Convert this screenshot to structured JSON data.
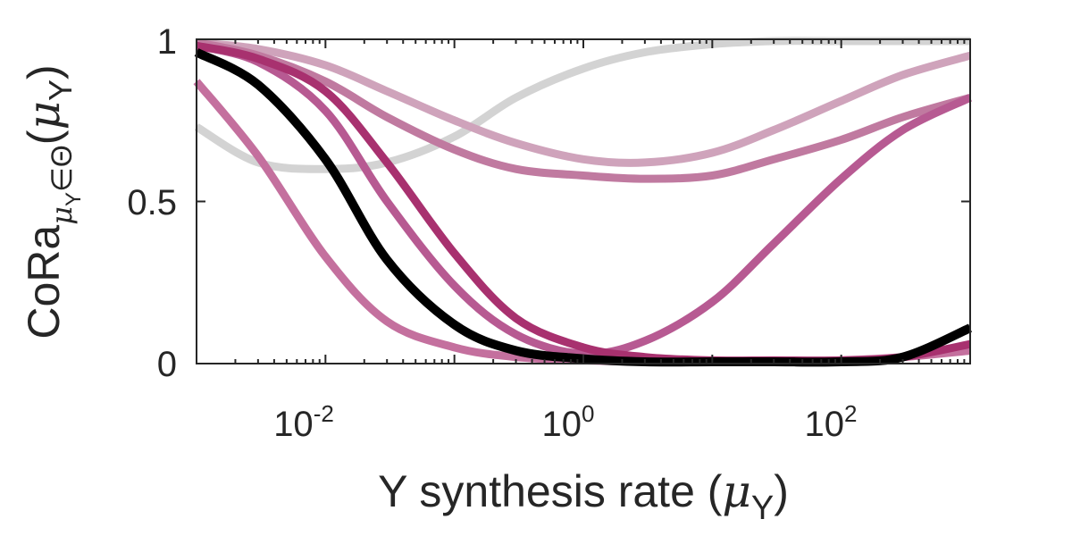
{
  "chart_data": {
    "type": "line",
    "x_scale": "log",
    "xlim": [
      0.001,
      1000
    ],
    "ylim": [
      0,
      1
    ],
    "x_ticks": [
      {
        "value": 0.01,
        "base": "10",
        "exp": "-2"
      },
      {
        "value": 1,
        "base": "10",
        "exp": "0"
      },
      {
        "value": 100,
        "base": "10",
        "exp": "2"
      }
    ],
    "y_ticks": [
      {
        "value": 0,
        "label": "0"
      },
      {
        "value": 0.5,
        "label": "0.5"
      },
      {
        "value": 1,
        "label": "1"
      }
    ],
    "xlabel": {
      "text": "Y synthesis rate (",
      "symbol": "μ",
      "sub": "Y",
      "close": ")"
    },
    "ylabel": {
      "text": "CoRa",
      "sub_symbol": "μ",
      "sub_sub": "Y",
      "sub_rest": "∈Θ",
      "open": "(",
      "symbol": "μ",
      "sym_sub": "Y",
      "close": ")"
    },
    "grid": false,
    "legend": "none",
    "series": [
      {
        "color": "#d3d3d3",
        "x": [
          0.001,
          0.003,
          0.01,
          0.03,
          0.1,
          0.3,
          1,
          3,
          10,
          30,
          100,
          300,
          1000
        ],
        "y": [
          0.73,
          0.62,
          0.6,
          0.62,
          0.7,
          0.82,
          0.91,
          0.96,
          0.985,
          0.995,
          1.0,
          1.0,
          1.0
        ]
      },
      {
        "color": "#cfa3bb",
        "x": [
          0.001,
          0.003,
          0.01,
          0.03,
          0.1,
          0.3,
          1,
          3,
          10,
          30,
          100,
          300,
          1000
        ],
        "y": [
          0.99,
          0.97,
          0.92,
          0.84,
          0.75,
          0.68,
          0.63,
          0.62,
          0.65,
          0.72,
          0.81,
          0.89,
          0.95
        ]
      },
      {
        "color": "#c07aa0",
        "x": [
          0.001,
          0.003,
          0.01,
          0.03,
          0.1,
          0.3,
          1,
          3,
          10,
          30,
          100,
          300,
          1000
        ],
        "y": [
          0.99,
          0.95,
          0.87,
          0.76,
          0.66,
          0.6,
          0.58,
          0.57,
          0.58,
          0.63,
          0.69,
          0.76,
          0.82
        ]
      },
      {
        "color": "#c4709e",
        "x": [
          0.001,
          0.003,
          0.01,
          0.03,
          0.1,
          0.3,
          1,
          3,
          10,
          30,
          100,
          300,
          1000
        ],
        "y": [
          0.87,
          0.64,
          0.33,
          0.13,
          0.05,
          0.02,
          0.01,
          0.005,
          0.005,
          0.005,
          0.01,
          0.02,
          0.04
        ]
      },
      {
        "color": "#b75a92",
        "x": [
          0.001,
          0.003,
          0.01,
          0.03,
          0.1,
          0.3,
          1,
          3,
          10,
          30,
          100,
          300,
          1000
        ],
        "y": [
          0.98,
          0.93,
          0.78,
          0.5,
          0.24,
          0.09,
          0.03,
          0.07,
          0.19,
          0.37,
          0.57,
          0.72,
          0.82
        ]
      },
      {
        "color": "#a8316f",
        "x": [
          0.001,
          0.003,
          0.01,
          0.03,
          0.1,
          0.3,
          1,
          3,
          10,
          30,
          100,
          300,
          1000
        ],
        "y": [
          0.98,
          0.94,
          0.84,
          0.62,
          0.34,
          0.14,
          0.05,
          0.02,
          0.01,
          0.01,
          0.01,
          0.02,
          0.06
        ]
      },
      {
        "color": "#000000",
        "x": [
          0.001,
          0.003,
          0.01,
          0.03,
          0.1,
          0.3,
          1,
          3,
          10,
          30,
          100,
          300,
          1000
        ],
        "y": [
          0.96,
          0.86,
          0.63,
          0.32,
          0.12,
          0.04,
          0.015,
          0.005,
          0.002,
          0.002,
          0.005,
          0.02,
          0.11
        ]
      }
    ]
  }
}
